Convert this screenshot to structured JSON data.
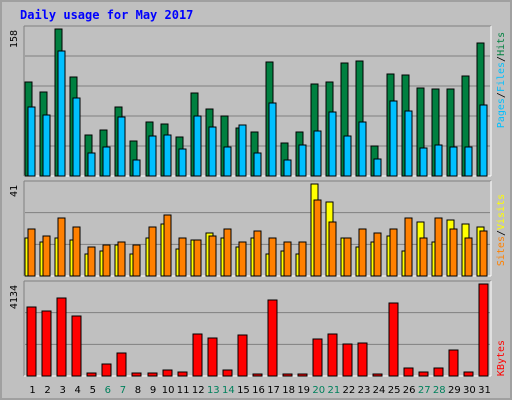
{
  "title": "Daily usage for May 2017",
  "chart_data": [
    {
      "type": "bar",
      "name": "hits-pages-files",
      "ymax_label": "158",
      "ymax": 158,
      "categories": [
        "1",
        "2",
        "3",
        "4",
        "5",
        "6",
        "7",
        "8",
        "9",
        "10",
        "11",
        "12",
        "13",
        "14",
        "15",
        "16",
        "17",
        "18",
        "19",
        "20",
        "21",
        "22",
        "23",
        "24",
        "25",
        "26",
        "27",
        "28",
        "29",
        "30",
        "31"
      ],
      "series": [
        {
          "name": "Hits",
          "color": "#008040",
          "values": [
            101,
            90,
            158,
            106,
            44,
            49,
            74,
            38,
            58,
            56,
            42,
            89,
            72,
            65,
            52,
            47,
            123,
            36,
            47,
            99,
            101,
            121,
            124,
            32,
            110,
            109,
            95,
            94,
            93,
            108,
            143
          ]
        },
        {
          "name": "Files",
          "color": "#00c0ff",
          "values": [
            74,
            66,
            134,
            84,
            25,
            31,
            63,
            17,
            43,
            44,
            29,
            64,
            53,
            31,
            55,
            25,
            78,
            17,
            33,
            48,
            69,
            43,
            58,
            18,
            81,
            70,
            30,
            33,
            31,
            31,
            76
          ]
        },
        {
          "name": "Pages",
          "color": "#0080ff",
          "values": [
            0,
            0,
            0,
            0,
            0,
            0,
            0,
            0,
            0,
            0,
            0,
            0,
            0,
            0,
            0,
            0,
            0,
            0,
            0,
            0,
            0,
            0,
            0,
            0,
            0,
            0,
            0,
            0,
            0,
            0,
            0
          ]
        }
      ],
      "legend": [
        "Pages",
        "/",
        "Files",
        "/",
        "Hits"
      ]
    },
    {
      "type": "bar",
      "name": "visits-sites",
      "ymax_label": "41",
      "ymax": 41,
      "series": [
        {
          "name": "Visits",
          "color": "#ffff00",
          "values": [
            17,
            15,
            17,
            16,
            10,
            11,
            14,
            10,
            17,
            23,
            12,
            16,
            19,
            17,
            13,
            17,
            10,
            11,
            10,
            41,
            33,
            17,
            13,
            15,
            18,
            11,
            24,
            15,
            25,
            23,
            22
          ]
        },
        {
          "name": "Sites",
          "color": "#ff8000",
          "values": [
            21,
            18,
            26,
            22,
            13,
            14,
            15,
            14,
            22,
            27,
            17,
            16,
            18,
            21,
            15,
            20,
            17,
            15,
            15,
            34,
            24,
            17,
            21,
            19,
            21,
            26,
            17,
            26,
            21,
            17,
            20
          ]
        }
      ],
      "legend": [
        "Sites",
        "/",
        "Visits"
      ]
    },
    {
      "type": "bar",
      "name": "kbytes",
      "ymax_label": "4134",
      "ymax": 4134,
      "series": [
        {
          "name": "KBytes",
          "color": "#ff0000",
          "values": [
            3100,
            2900,
            3500,
            2700,
            140,
            550,
            1050,
            120,
            120,
            250,
            200,
            1900,
            1700,
            270,
            1850,
            0,
            3400,
            0,
            0,
            1650,
            1900,
            1450,
            1470,
            100,
            3300,
            380,
            200,
            340,
            1150,
            180,
            4134
          ]
        }
      ],
      "legend": [
        "KBytes"
      ]
    }
  ],
  "xaxis": {
    "labels": [
      "1",
      "2",
      "3",
      "4",
      "5",
      "6",
      "7",
      "8",
      "9",
      "10",
      "11",
      "12",
      "13",
      "14",
      "15",
      "16",
      "17",
      "18",
      "19",
      "20",
      "21",
      "22",
      "23",
      "24",
      "25",
      "26",
      "27",
      "28",
      "29",
      "30",
      "31"
    ],
    "weekend_days": [
      6,
      7,
      13,
      14,
      20,
      21,
      27,
      28
    ],
    "weekday_color": "#000000",
    "weekend_color": "#00805c"
  },
  "colors": {
    "background": "#c0c0c0",
    "plot": "#c0c0c0",
    "grid": "#808080",
    "title": "#0000ff",
    "hits_legend": "#008040",
    "files_legend": "#00c0ff",
    "pages_legend": "#00c0ff",
    "sites_legend": "#ff8000",
    "visits_legend": "#ffff00",
    "kbytes_legend": "#ff0000"
  }
}
